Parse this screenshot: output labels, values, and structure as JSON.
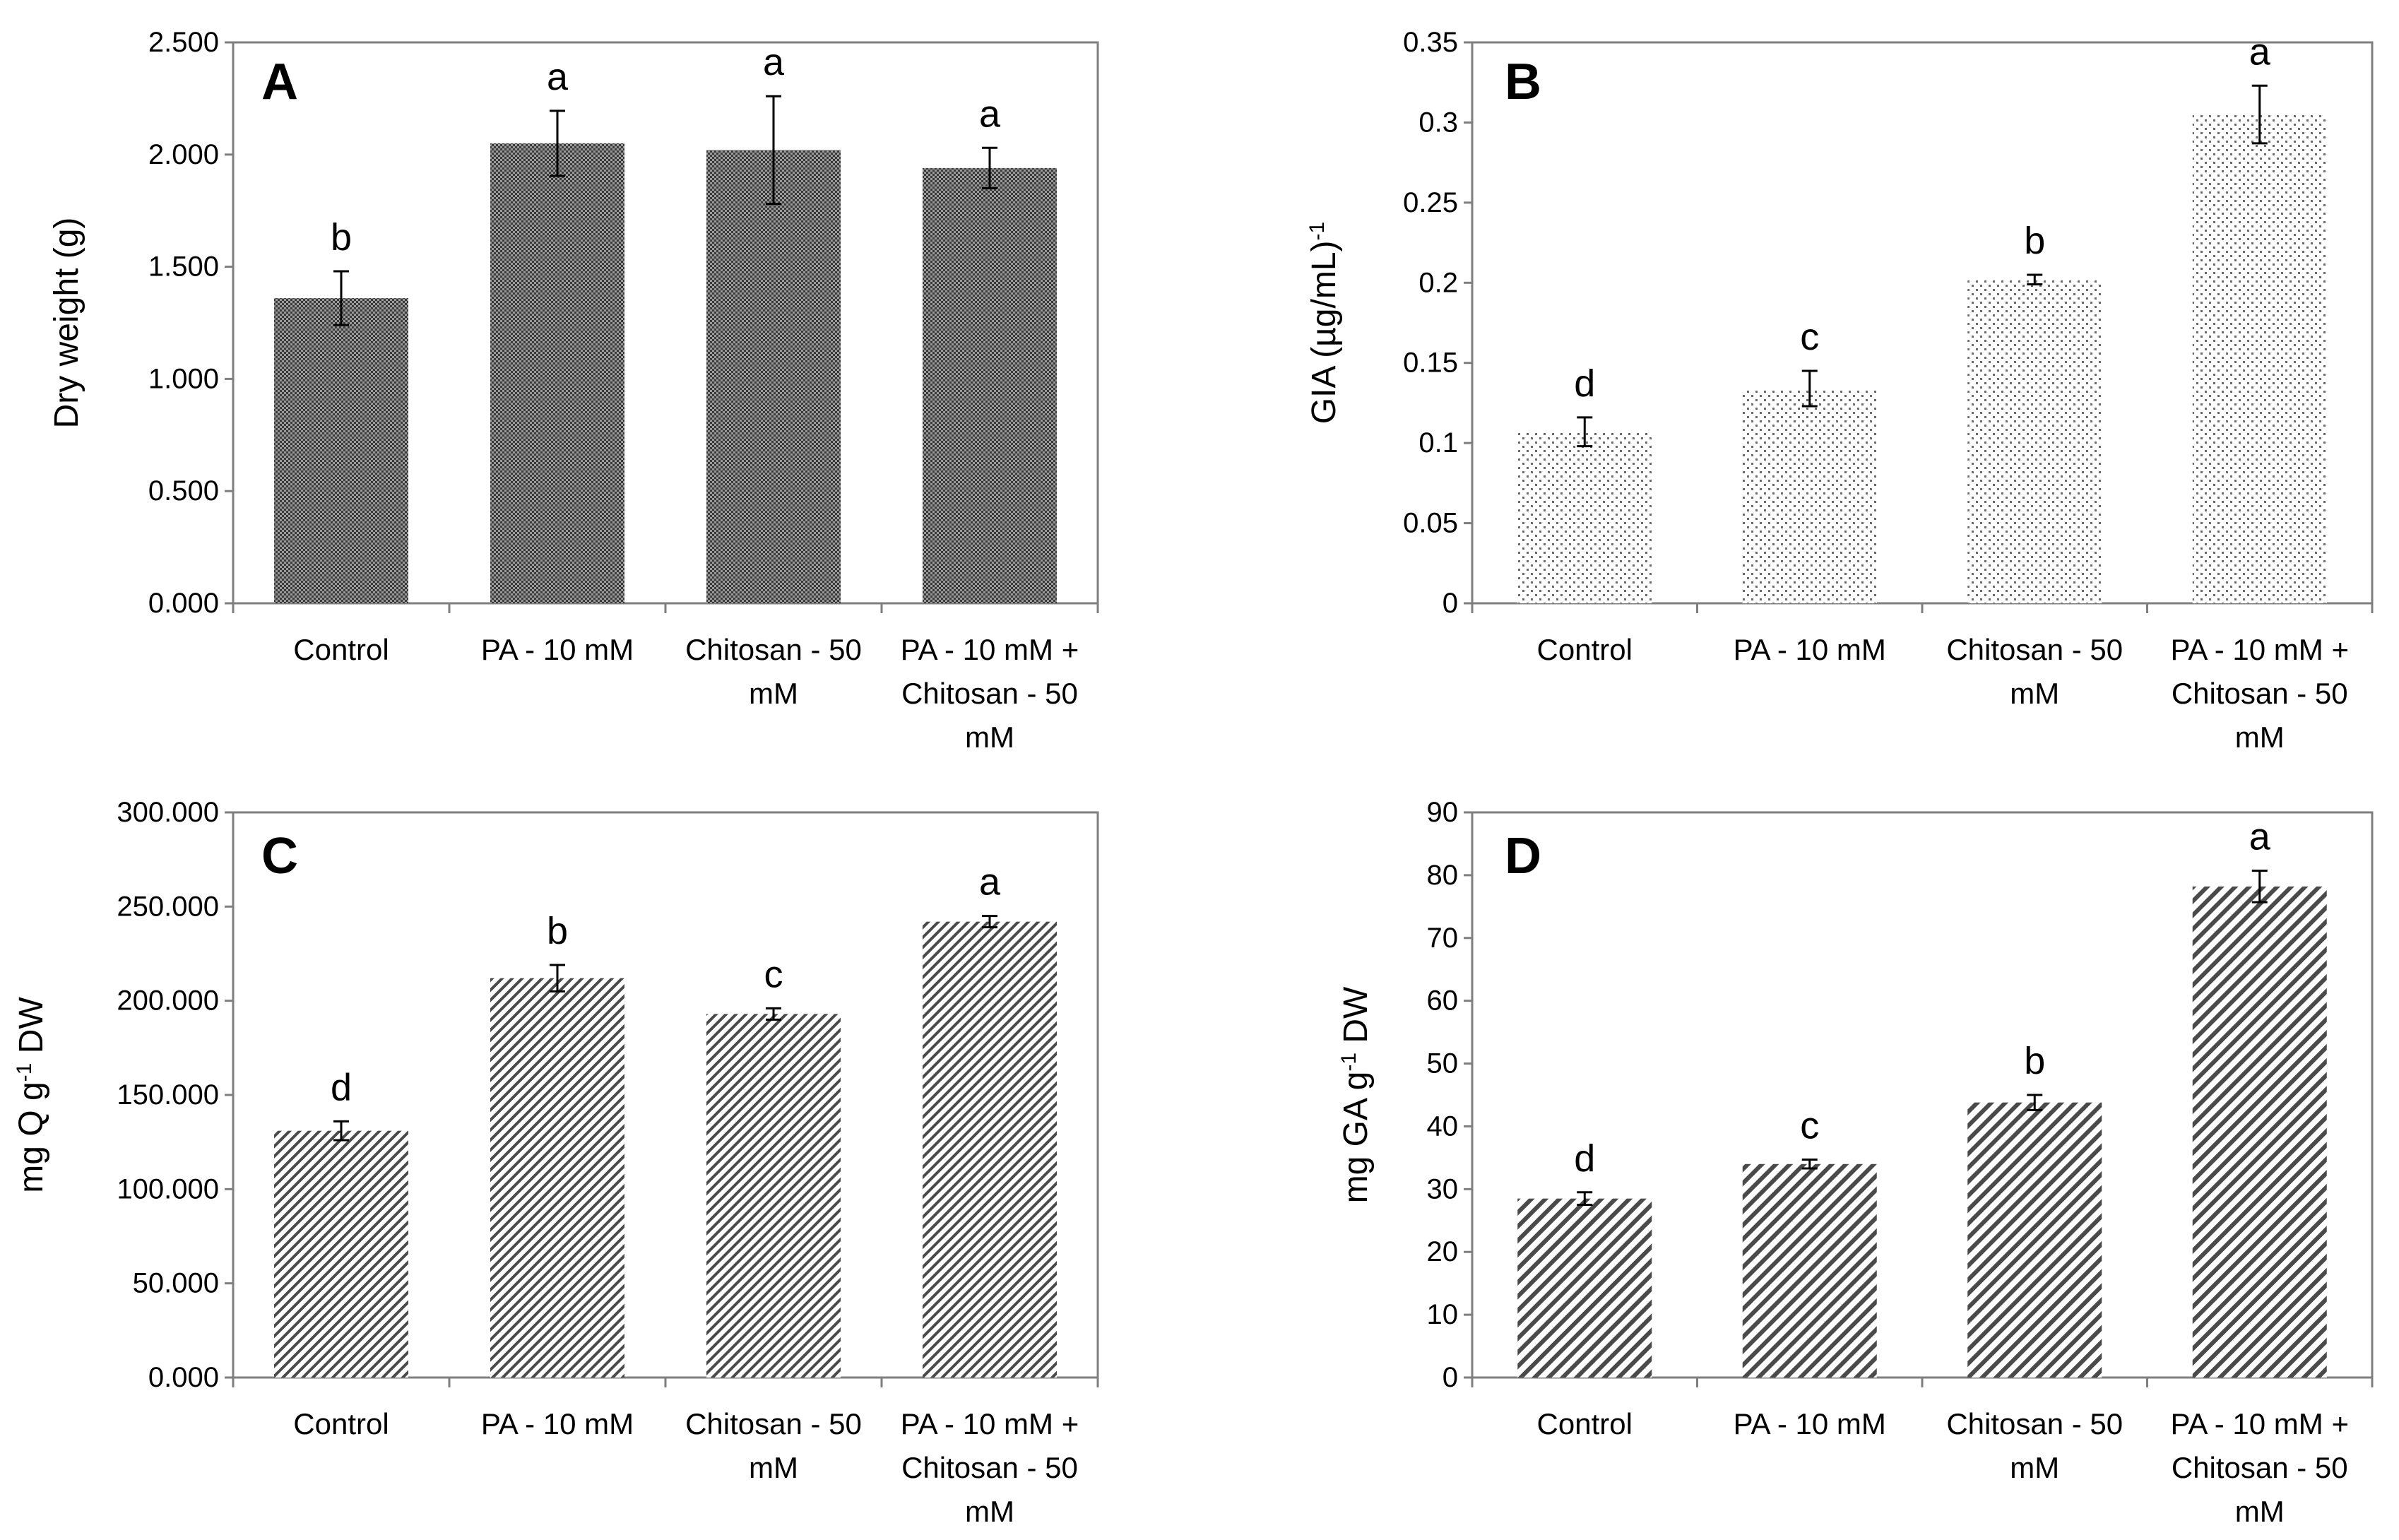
{
  "chart_data": [
    {
      "panel": "A",
      "type": "bar",
      "ylabel": "Dry weight (g)",
      "ylim": [
        0,
        2.5
      ],
      "yticks": [
        "0.000",
        "0.500",
        "1.000",
        "1.500",
        "2.000",
        "2.500"
      ],
      "tick_step": 0.5,
      "categories": [
        [
          "Control"
        ],
        [
          "PA - 10 mM"
        ],
        [
          "Chitosan - 50",
          "mM"
        ],
        [
          "PA - 10 mM +",
          "Chitosan - 50",
          "mM"
        ]
      ],
      "values": [
        1.36,
        2.05,
        2.02,
        1.94
      ],
      "errors": [
        0.12,
        0.145,
        0.24,
        0.09
      ],
      "significance": [
        "b",
        "a",
        "a",
        "a"
      ],
      "pattern": "dense-dots",
      "color": "#5a5a5a"
    },
    {
      "panel": "B",
      "type": "bar",
      "ylabel": "GIA (µg/mL)",
      "ylabel_sup": "-1",
      "ylim": [
        0,
        0.35
      ],
      "yticks": [
        "0",
        "0.05",
        "0.1",
        "0.15",
        "0.2",
        "0.25",
        "0.3",
        "0.35"
      ],
      "tick_step": 0.05,
      "categories": [
        [
          "Control"
        ],
        [
          "PA - 10 mM"
        ],
        [
          "Chitosan - 50",
          "mM"
        ],
        [
          "PA - 10 mM +",
          "Chitosan - 50",
          "mM"
        ]
      ],
      "values": [
        0.107,
        0.134,
        0.202,
        0.305
      ],
      "errors": [
        0.009,
        0.011,
        0.003,
        0.018
      ],
      "significance": [
        "d",
        "c",
        "b",
        "a"
      ],
      "pattern": "sparse-dots",
      "color": "#8a8a8a"
    },
    {
      "panel": "C",
      "type": "bar",
      "ylabel": "mg Q g",
      "ylabel_sup": "-1",
      "ylabel_tail": " DW",
      "ylim": [
        0,
        300
      ],
      "yticks": [
        "0.000",
        "50.000",
        "100.000",
        "150.000",
        "200.000",
        "250.000",
        "300.000"
      ],
      "tick_step": 50,
      "categories": [
        [
          "Control"
        ],
        [
          "PA - 10 mM"
        ],
        [
          "Chitosan - 50",
          "mM"
        ],
        [
          "PA - 10 mM +",
          "Chitosan - 50",
          "mM"
        ]
      ],
      "values": [
        131,
        212,
        193,
        242
      ],
      "errors": [
        5,
        7,
        3,
        3
      ],
      "significance": [
        "d",
        "b",
        "c",
        "a"
      ],
      "pattern": "fine-diagonal",
      "color": "#4a4a4a"
    },
    {
      "panel": "D",
      "type": "bar",
      "ylabel": "mg GA g",
      "ylabel_sup": "-1",
      "ylabel_tail": " DW",
      "ylim": [
        0,
        90
      ],
      "yticks": [
        "0",
        "10",
        "20",
        "30",
        "40",
        "50",
        "60",
        "70",
        "80",
        "90"
      ],
      "tick_step": 10,
      "categories": [
        [
          "Control"
        ],
        [
          "PA - 10 mM"
        ],
        [
          "Chitosan - 50",
          "mM"
        ],
        [
          "PA - 10 mM +",
          "Chitosan - 50",
          "mM"
        ]
      ],
      "values": [
        28.5,
        34,
        43.8,
        78.2
      ],
      "errors": [
        1,
        0.7,
        1.2,
        2.5
      ],
      "significance": [
        "d",
        "c",
        "b",
        "a"
      ],
      "pattern": "wide-diagonal",
      "color": "#4a4a4a"
    }
  ]
}
